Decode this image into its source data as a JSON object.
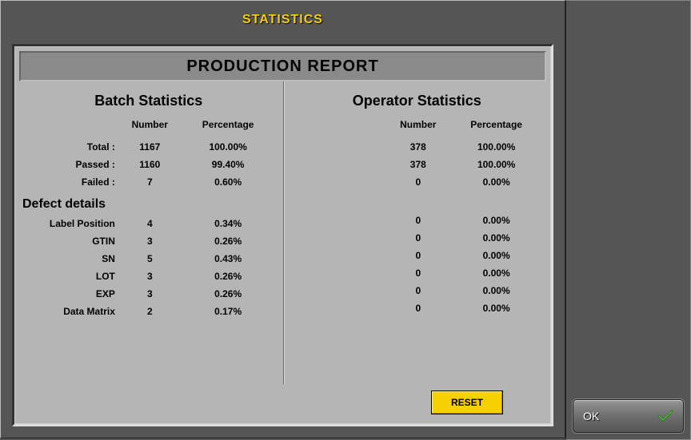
{
  "window": {
    "title": "STATISTICS"
  },
  "report": {
    "header": "PRODUCTION REPORT",
    "batch_title": "Batch Statistics",
    "operator_title": "Operator Statistics",
    "col_headers": {
      "number": "Number",
      "percentage": "Percentage"
    },
    "rows": {
      "total": {
        "label": "Total  :",
        "batch_num": "1167",
        "batch_pct": "100.00%",
        "op_num": "378",
        "op_pct": "100.00%"
      },
      "passed": {
        "label": "Passed :",
        "batch_num": "1160",
        "batch_pct": "99.40%",
        "op_num": "378",
        "op_pct": "100.00%"
      },
      "failed": {
        "label": "Failed :",
        "batch_num": "7",
        "batch_pct": "0.60%",
        "op_num": "0",
        "op_pct": "0.00%"
      }
    },
    "defect_heading": "Defect details",
    "defects": [
      {
        "label": "Label Position",
        "batch_num": "4",
        "batch_pct": "0.34%",
        "op_num": "0",
        "op_pct": "0.00%"
      },
      {
        "label": "GTIN",
        "batch_num": "3",
        "batch_pct": "0.26%",
        "op_num": "0",
        "op_pct": "0.00%"
      },
      {
        "label": "SN",
        "batch_num": "5",
        "batch_pct": "0.43%",
        "op_num": "0",
        "op_pct": "0.00%"
      },
      {
        "label": "LOT",
        "batch_num": "3",
        "batch_pct": "0.26%",
        "op_num": "0",
        "op_pct": "0.00%"
      },
      {
        "label": "EXP",
        "batch_num": "3",
        "batch_pct": "0.26%",
        "op_num": "0",
        "op_pct": "0.00%"
      },
      {
        "label": "Data Matrix",
        "batch_num": "2",
        "batch_pct": "0.17%",
        "op_num": "0",
        "op_pct": "0.00%"
      }
    ],
    "reset_label": "RESET"
  },
  "buttons": {
    "ok_label": "OK"
  },
  "colors": {
    "accent_yellow": "#f6d000",
    "panel_bg": "#555555",
    "report_bg": "#b5b5b5",
    "header_bg": "#8a8a8a"
  }
}
